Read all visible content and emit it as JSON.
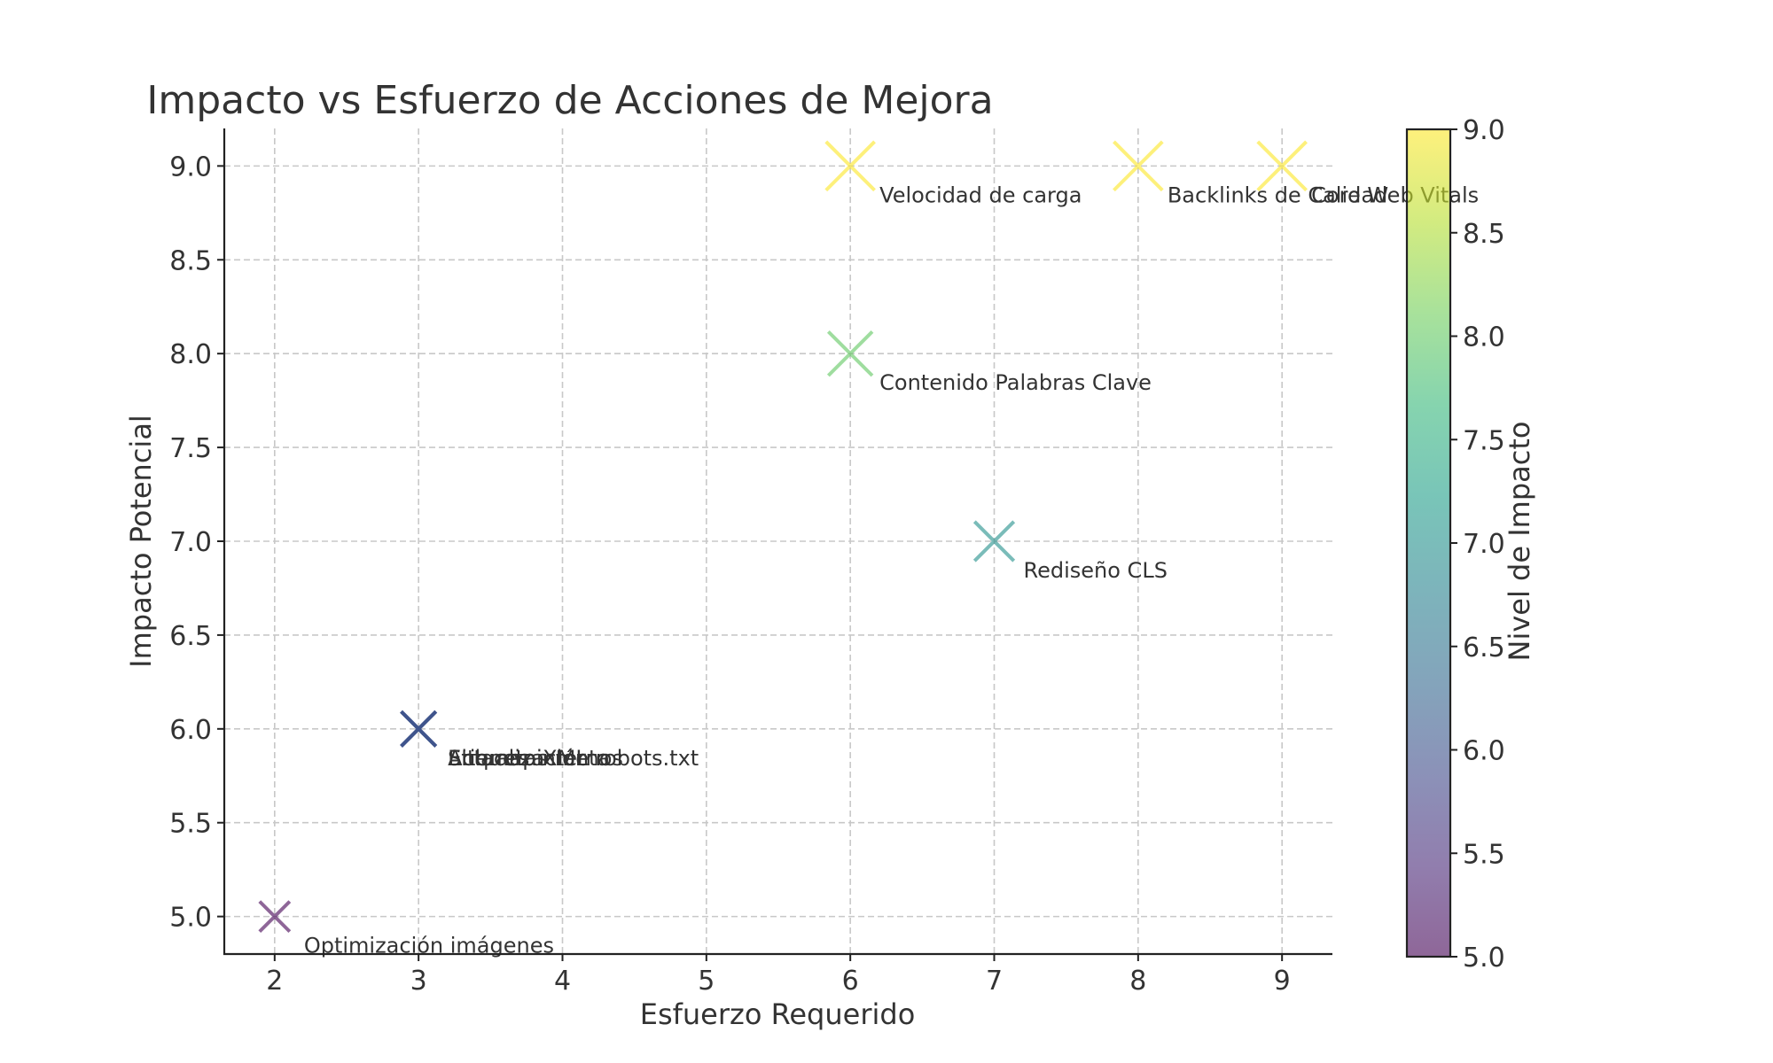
{
  "chart_data": {
    "type": "scatter",
    "title": "Impacto vs Esfuerzo de Acciones de Mejora",
    "xlabel": "Esfuerzo Requerido",
    "ylabel": "Impacto Potencial",
    "xlim": [
      1.65,
      9.35
    ],
    "ylim": [
      4.8,
      9.2
    ],
    "xticks": [
      "2",
      "3",
      "4",
      "5",
      "6",
      "7",
      "8",
      "9"
    ],
    "yticks": [
      "5.0",
      "5.5",
      "6.0",
      "6.5",
      "7.0",
      "7.5",
      "8.0",
      "8.5",
      "9.0"
    ],
    "grid": true,
    "marker": "x",
    "points": [
      {
        "label": "Velocidad de carga",
        "x": 6,
        "y": 9
      },
      {
        "label": "Backlinks de Calidad",
        "x": 8,
        "y": 9
      },
      {
        "label": "Core Web Vitals",
        "x": 9,
        "y": 9
      },
      {
        "label": "Contenido Palabras Clave",
        "x": 6,
        "y": 8
      },
      {
        "label": "Rediseño CLS",
        "x": 7,
        "y": 7
      },
      {
        "label": "Actualización robots.txt",
        "x": 3,
        "y": 6
      },
      {
        "label": "Etiquetas meta",
        "x": 3,
        "y": 6
      },
      {
        "label": "Enlaces internos",
        "x": 3,
        "y": 6
      },
      {
        "label": "Sitemap XML",
        "x": 3,
        "y": 6
      },
      {
        "label": "Optimización imágenes",
        "x": 2,
        "y": 5
      }
    ],
    "colorbar": {
      "label": "Nivel de Impacto",
      "range": [
        5.0,
        9.0
      ],
      "ticks": [
        "5.0",
        "5.5",
        "6.0",
        "6.5",
        "7.0",
        "7.5",
        "8.0",
        "8.5",
        "9.0"
      ],
      "colormap": "viridis",
      "stops": [
        "#440154",
        "#482878",
        "#3e4989",
        "#31688e",
        "#26828e",
        "#1f9e89",
        "#35b779",
        "#6ece58",
        "#b5de2b",
        "#fde725"
      ]
    }
  }
}
